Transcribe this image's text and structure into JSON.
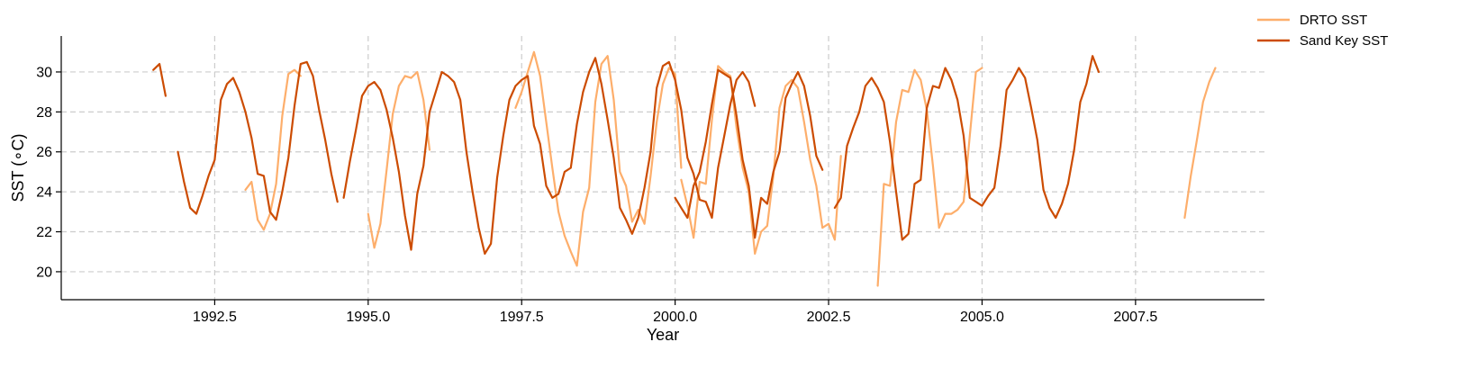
{
  "chart_data": {
    "type": "line",
    "title": "",
    "xlabel": "Year",
    "ylabel": "SST (∘C)",
    "xlim": [
      1990.0,
      2009.6
    ],
    "ylim": [
      18.6,
      31.8
    ],
    "grid": true,
    "legend_position": "top-right",
    "xticks": [
      1992.5,
      1995.0,
      1997.5,
      2000.0,
      2002.5,
      2005.0,
      2007.5
    ],
    "xtick_labels": [
      "1992.5",
      "1995.0",
      "1997.5",
      "2000.0",
      "2002.5",
      "2005.0",
      "2007.5"
    ],
    "yticks": [
      20,
      22,
      24,
      26,
      28,
      30
    ],
    "ytick_labels": [
      "20",
      "22",
      "24",
      "26",
      "28",
      "30"
    ],
    "series": [
      {
        "name": "DRTO SST",
        "color": "#fdae6b",
        "segments": [
          [
            [
              1993.0,
              24.1
            ],
            [
              1993.1,
              24.5
            ],
            [
              1993.2,
              22.6
            ],
            [
              1993.3,
              22.1
            ],
            [
              1993.4,
              22.9
            ],
            [
              1993.5,
              24.4
            ],
            [
              1993.6,
              27.8
            ],
            [
              1993.7,
              29.9
            ],
            [
              1993.8,
              30.1
            ],
            [
              1993.9,
              29.8
            ]
          ],
          [
            [
              1995.0,
              22.9
            ],
            [
              1995.1,
              21.2
            ],
            [
              1995.2,
              22.4
            ],
            [
              1995.3,
              25.1
            ],
            [
              1995.4,
              27.9
            ],
            [
              1995.5,
              29.3
            ],
            [
              1995.6,
              29.8
            ],
            [
              1995.7,
              29.7
            ],
            [
              1995.8,
              30.0
            ],
            [
              1995.9,
              28.6
            ],
            [
              1996.0,
              26.1
            ]
          ],
          [
            [
              1997.4,
              28.2
            ],
            [
              1997.5,
              29.0
            ],
            [
              1997.6,
              30.0
            ],
            [
              1997.7,
              31.0
            ],
            [
              1997.8,
              29.8
            ],
            [
              1997.9,
              27.5
            ],
            [
              1998.0,
              25.2
            ],
            [
              1998.1,
              23.0
            ],
            [
              1998.2,
              21.8
            ],
            [
              1998.3,
              21.0
            ],
            [
              1998.4,
              20.3
            ],
            [
              1998.5,
              23.0
            ],
            [
              1998.6,
              24.2
            ],
            [
              1998.7,
              28.5
            ],
            [
              1998.8,
              30.4
            ],
            [
              1998.9,
              30.8
            ],
            [
              1999.0,
              28.6
            ],
            [
              1999.1,
              25.0
            ],
            [
              1999.2,
              24.3
            ],
            [
              1999.3,
              22.5
            ],
            [
              1999.4,
              23.1
            ],
            [
              1999.5,
              22.4
            ],
            [
              1999.6,
              24.8
            ],
            [
              1999.7,
              27.5
            ],
            [
              1999.8,
              29.4
            ],
            [
              1999.9,
              30.2
            ],
            [
              2000.0,
              29.9
            ],
            [
              2000.1,
              25.2
            ]
          ],
          [
            [
              2000.1,
              24.6
            ],
            [
              2000.2,
              23.3
            ],
            [
              2000.3,
              21.7
            ],
            [
              2000.4,
              24.5
            ],
            [
              2000.5,
              24.4
            ],
            [
              2000.6,
              27.6
            ],
            [
              2000.7,
              30.3
            ],
            [
              2000.8,
              30.0
            ],
            [
              2000.9,
              29.8
            ],
            [
              2001.0,
              27.2
            ],
            [
              2001.1,
              25.2
            ],
            [
              2001.2,
              24.0
            ],
            [
              2001.3,
              20.9
            ],
            [
              2001.4,
              22.0
            ],
            [
              2001.5,
              22.3
            ],
            [
              2001.6,
              24.8
            ],
            [
              2001.7,
              28.2
            ],
            [
              2001.8,
              29.3
            ],
            [
              2001.9,
              29.6
            ],
            [
              2002.0,
              29.2
            ],
            [
              2002.1,
              27.5
            ],
            [
              2002.2,
              25.6
            ],
            [
              2002.3,
              24.3
            ],
            [
              2002.4,
              22.2
            ],
            [
              2002.5,
              22.4
            ],
            [
              2002.6,
              21.6
            ],
            [
              2002.7,
              25.8
            ]
          ],
          [
            [
              2003.3,
              19.3
            ],
            [
              2003.4,
              24.4
            ],
            [
              2003.5,
              24.3
            ],
            [
              2003.6,
              27.5
            ],
            [
              2003.7,
              29.1
            ],
            [
              2003.8,
              29.0
            ],
            [
              2003.9,
              30.1
            ],
            [
              2004.0,
              29.6
            ],
            [
              2004.1,
              28.1
            ],
            [
              2004.2,
              25.3
            ],
            [
              2004.3,
              22.2
            ],
            [
              2004.4,
              22.9
            ],
            [
              2004.5,
              22.9
            ],
            [
              2004.6,
              23.1
            ],
            [
              2004.7,
              23.5
            ],
            [
              2004.8,
              26.8
            ],
            [
              2004.9,
              30.0
            ],
            [
              2005.0,
              30.2
            ]
          ],
          [
            [
              2008.3,
              22.7
            ],
            [
              2008.4,
              24.8
            ],
            [
              2008.5,
              26.6
            ],
            [
              2008.6,
              28.5
            ],
            [
              2008.7,
              29.5
            ],
            [
              2008.8,
              30.2
            ]
          ]
        ]
      },
      {
        "name": "Sand Key SST",
        "color": "#cc4c02",
        "segments": [
          [
            [
              1991.5,
              30.1
            ],
            [
              1991.6,
              30.4
            ],
            [
              1991.7,
              28.8
            ]
          ],
          [
            [
              1991.9,
              26.0
            ],
            [
              1992.0,
              24.5
            ],
            [
              1992.1,
              23.2
            ],
            [
              1992.2,
              22.9
            ],
            [
              1992.3,
              23.8
            ],
            [
              1992.4,
              24.8
            ],
            [
              1992.5,
              25.6
            ],
            [
              1992.6,
              28.6
            ],
            [
              1992.7,
              29.4
            ],
            [
              1992.8,
              29.7
            ],
            [
              1992.9,
              29.0
            ],
            [
              1993.0,
              28.0
            ],
            [
              1993.1,
              26.7
            ],
            [
              1993.2,
              24.9
            ],
            [
              1993.3,
              24.8
            ],
            [
              1993.4,
              23.0
            ],
            [
              1993.5,
              22.6
            ],
            [
              1993.6,
              24.0
            ],
            [
              1993.7,
              25.7
            ],
            [
              1993.8,
              28.3
            ],
            [
              1993.9,
              30.4
            ],
            [
              1994.0,
              30.5
            ],
            [
              1994.1,
              29.8
            ],
            [
              1994.2,
              28.1
            ],
            [
              1994.3,
              26.6
            ],
            [
              1994.4,
              24.9
            ],
            [
              1994.5,
              23.5
            ]
          ],
          [
            [
              1994.6,
              23.7
            ],
            [
              1994.7,
              25.5
            ],
            [
              1994.8,
              27.1
            ],
            [
              1994.9,
              28.8
            ],
            [
              1995.0,
              29.3
            ],
            [
              1995.1,
              29.5
            ],
            [
              1995.2,
              29.1
            ],
            [
              1995.3,
              28.1
            ],
            [
              1995.4,
              26.7
            ],
            [
              1995.5,
              25.0
            ],
            [
              1995.6,
              22.8
            ],
            [
              1995.7,
              21.1
            ],
            [
              1995.8,
              23.9
            ],
            [
              1995.9,
              25.3
            ],
            [
              1996.0,
              28.0
            ],
            [
              1996.1,
              29.0
            ],
            [
              1996.2,
              30.0
            ],
            [
              1996.3,
              29.8
            ],
            [
              1996.4,
              29.5
            ],
            [
              1996.5,
              28.6
            ],
            [
              1996.6,
              26.0
            ],
            [
              1996.7,
              24.0
            ],
            [
              1996.8,
              22.2
            ],
            [
              1996.9,
              20.9
            ],
            [
              1997.0,
              21.4
            ],
            [
              1997.1,
              24.7
            ],
            [
              1997.2,
              26.8
            ],
            [
              1997.3,
              28.6
            ],
            [
              1997.4,
              29.3
            ],
            [
              1997.5,
              29.6
            ],
            [
              1997.6,
              29.8
            ],
            [
              1997.7,
              27.3
            ],
            [
              1997.8,
              26.4
            ],
            [
              1997.9,
              24.3
            ],
            [
              1998.0,
              23.7
            ],
            [
              1998.1,
              23.9
            ],
            [
              1998.2,
              25.0
            ],
            [
              1998.3,
              25.2
            ],
            [
              1998.4,
              27.4
            ],
            [
              1998.5,
              29.0
            ],
            [
              1998.6,
              30.0
            ],
            [
              1998.7,
              30.7
            ],
            [
              1998.8,
              29.4
            ],
            [
              1998.9,
              27.6
            ],
            [
              1999.0,
              25.7
            ],
            [
              1999.1,
              23.2
            ],
            [
              1999.2,
              22.6
            ],
            [
              1999.3,
              21.9
            ],
            [
              1999.4,
              22.7
            ],
            [
              1999.5,
              24.2
            ],
            [
              1999.6,
              26.0
            ],
            [
              1999.7,
              29.2
            ],
            [
              1999.8,
              30.3
            ],
            [
              1999.9,
              30.5
            ],
            [
              2000.0,
              29.6
            ],
            [
              2000.1,
              28.1
            ],
            [
              2000.2,
              25.7
            ],
            [
              2000.3,
              24.9
            ],
            [
              2000.4,
              23.6
            ],
            [
              2000.5,
              23.5
            ],
            [
              2000.6,
              22.7
            ],
            [
              2000.7,
              25.2
            ],
            [
              2000.8,
              26.8
            ],
            [
              2000.9,
              28.4
            ],
            [
              2001.0,
              29.6
            ],
            [
              2001.1,
              30.0
            ],
            [
              2001.2,
              29.5
            ],
            [
              2001.3,
              28.3
            ]
          ],
          [
            [
              2000.0,
              23.7
            ],
            [
              2000.1,
              23.2
            ],
            [
              2000.2,
              22.7
            ],
            [
              2000.3,
              24.3
            ],
            [
              2000.4,
              25.0
            ],
            [
              2000.5,
              26.5
            ],
            [
              2000.6,
              28.4
            ],
            [
              2000.7,
              30.1
            ],
            [
              2000.8,
              29.9
            ],
            [
              2000.9,
              29.7
            ],
            [
              2001.0,
              27.8
            ],
            [
              2001.1,
              25.6
            ],
            [
              2001.2,
              24.3
            ],
            [
              2001.3,
              21.7
            ],
            [
              2001.4,
              23.7
            ],
            [
              2001.5,
              23.4
            ],
            [
              2001.6,
              25.0
            ],
            [
              2001.7,
              26.0
            ],
            [
              2001.8,
              28.7
            ],
            [
              2001.9,
              29.4
            ],
            [
              2002.0,
              30.0
            ],
            [
              2002.1,
              29.3
            ],
            [
              2002.2,
              27.8
            ],
            [
              2002.3,
              25.8
            ],
            [
              2002.4,
              25.1
            ]
          ],
          [
            [
              2002.6,
              23.2
            ],
            [
              2002.7,
              23.7
            ],
            [
              2002.8,
              26.3
            ],
            [
              2002.9,
              27.2
            ],
            [
              2003.0,
              28.0
            ],
            [
              2003.1,
              29.3
            ],
            [
              2003.2,
              29.7
            ],
            [
              2003.3,
              29.2
            ],
            [
              2003.4,
              28.5
            ],
            [
              2003.5,
              26.5
            ],
            [
              2003.6,
              24.0
            ],
            [
              2003.7,
              21.6
            ],
            [
              2003.8,
              21.9
            ],
            [
              2003.9,
              24.4
            ],
            [
              2004.0,
              24.6
            ],
            [
              2004.1,
              28.2
            ],
            [
              2004.2,
              29.3
            ],
            [
              2004.3,
              29.2
            ],
            [
              2004.4,
              30.2
            ],
            [
              2004.5,
              29.6
            ],
            [
              2004.6,
              28.6
            ],
            [
              2004.7,
              26.8
            ],
            [
              2004.8,
              23.7
            ],
            [
              2004.9,
              23.5
            ],
            [
              2005.0,
              23.3
            ],
            [
              2005.1,
              23.8
            ],
            [
              2005.2,
              24.2
            ],
            [
              2005.3,
              26.3
            ],
            [
              2005.4,
              29.1
            ],
            [
              2005.5,
              29.6
            ],
            [
              2005.6,
              30.2
            ],
            [
              2005.7,
              29.7
            ],
            [
              2005.8,
              28.2
            ],
            [
              2005.9,
              26.6
            ],
            [
              2006.0,
              24.1
            ],
            [
              2006.1,
              23.2
            ],
            [
              2006.2,
              22.7
            ],
            [
              2006.3,
              23.4
            ],
            [
              2006.4,
              24.4
            ],
            [
              2006.5,
              26.1
            ],
            [
              2006.6,
              28.5
            ],
            [
              2006.7,
              29.4
            ],
            [
              2006.8,
              30.8
            ],
            [
              2006.9,
              30.0
            ]
          ]
        ]
      }
    ]
  }
}
